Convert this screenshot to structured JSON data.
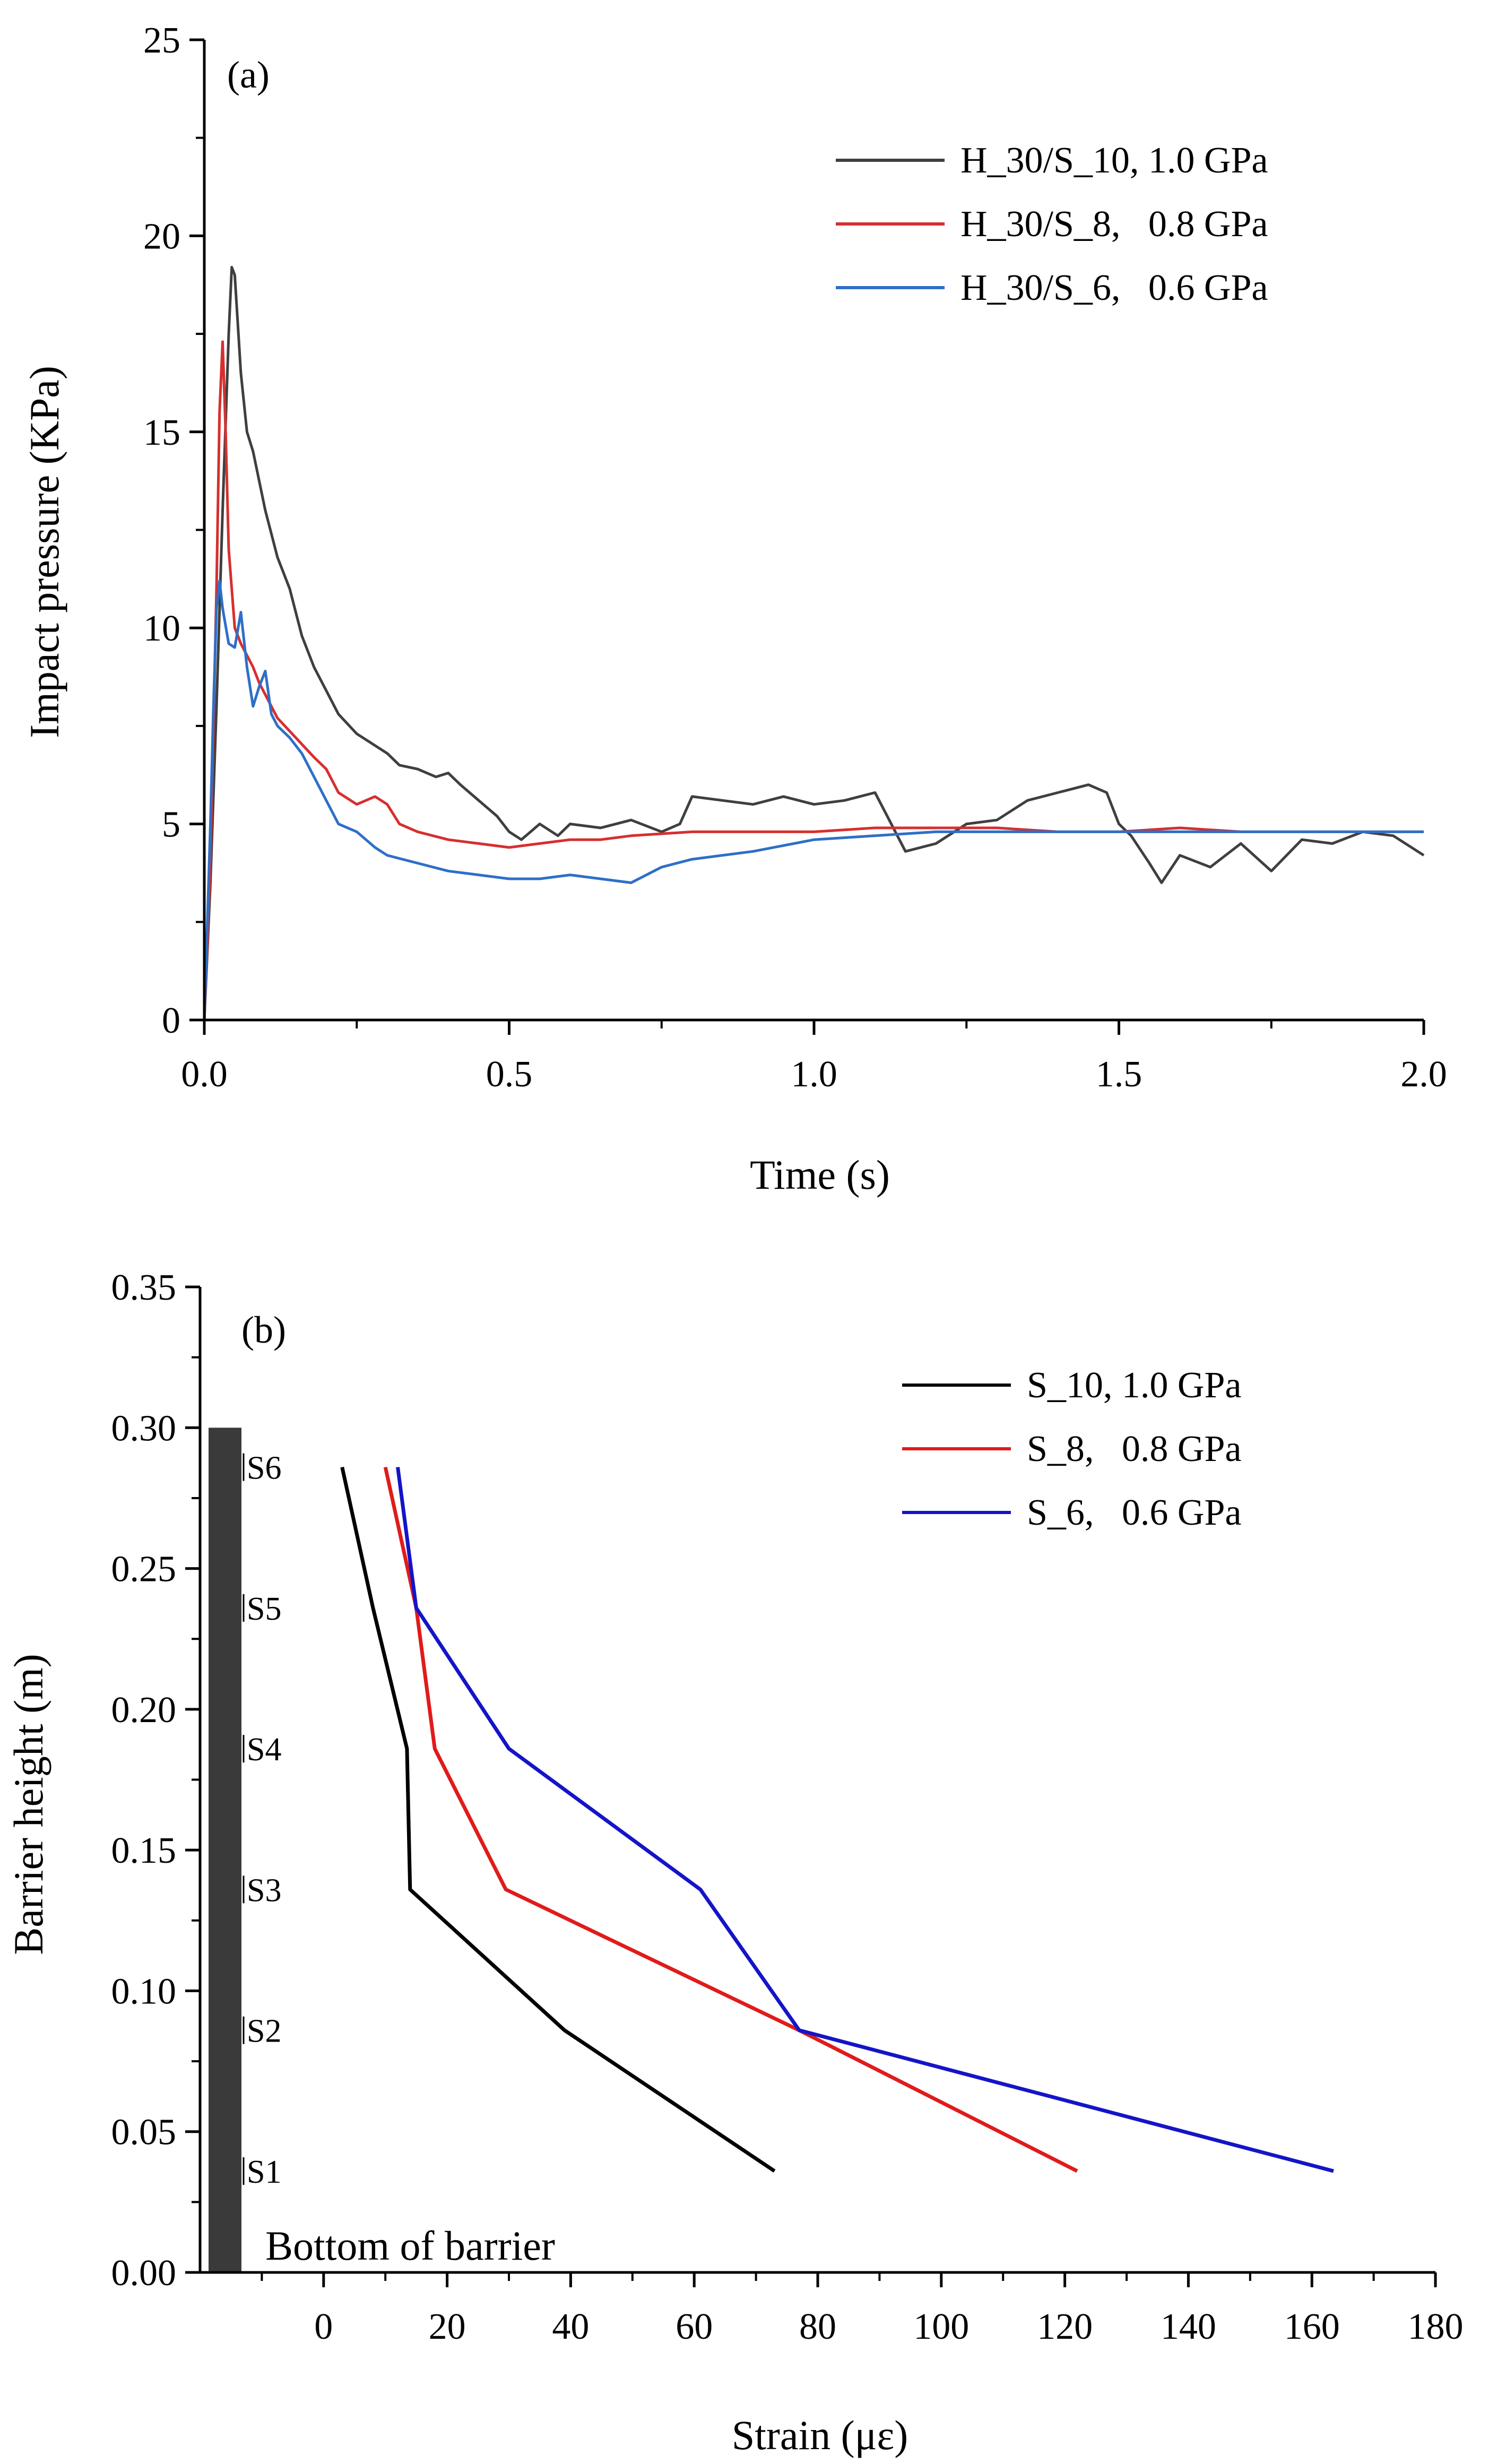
{
  "chart_data": [
    {
      "type": "line",
      "panel_label": "(a)",
      "xlabel": "Time (s)",
      "ylabel": "Impact pressure (KPa)",
      "xlim": [
        0,
        2.0
      ],
      "ylim": [
        0,
        25
      ],
      "xticks": [
        {
          "v": 0.0,
          "label": "0.0"
        },
        {
          "v": 0.5,
          "label": "0.5"
        },
        {
          "v": 1.0,
          "label": "1.0"
        },
        {
          "v": 1.5,
          "label": "1.5"
        },
        {
          "v": 2.0,
          "label": "2.0"
        }
      ],
      "yticks": [
        {
          "v": 0,
          "label": "0"
        },
        {
          "v": 5,
          "label": "5"
        },
        {
          "v": 10,
          "label": "10"
        },
        {
          "v": 15,
          "label": "15"
        },
        {
          "v": 20,
          "label": "20"
        },
        {
          "v": 25,
          "label": "25"
        }
      ],
      "legend_position": "top-right",
      "series": [
        {
          "name": "H_30/S_10, 1.0 GPa",
          "color": "#3f3f3f",
          "x": [
            0,
            0.01,
            0.02,
            0.03,
            0.04,
            0.045,
            0.05,
            0.06,
            0.07,
            0.08,
            0.1,
            0.12,
            0.14,
            0.16,
            0.18,
            0.2,
            0.22,
            0.25,
            0.28,
            0.3,
            0.32,
            0.35,
            0.38,
            0.4,
            0.42,
            0.45,
            0.48,
            0.5,
            0.52,
            0.55,
            0.58,
            0.6,
            0.65,
            0.7,
            0.75,
            0.78,
            0.8,
            0.85,
            0.9,
            0.95,
            1.0,
            1.05,
            1.1,
            1.12,
            1.15,
            1.2,
            1.25,
            1.3,
            1.35,
            1.4,
            1.45,
            1.48,
            1.5,
            1.52,
            1.55,
            1.57,
            1.6,
            1.65,
            1.7,
            1.75,
            1.8,
            1.85,
            1.9,
            1.95,
            2.0
          ],
          "y": [
            0,
            3.5,
            8.0,
            13.0,
            17.5,
            19.2,
            19.0,
            16.5,
            15.0,
            14.5,
            13.0,
            11.8,
            11.0,
            9.8,
            9.0,
            8.4,
            7.8,
            7.3,
            7.0,
            6.8,
            6.5,
            6.4,
            6.2,
            6.3,
            6.0,
            5.6,
            5.2,
            4.8,
            4.6,
            5.0,
            4.7,
            5.0,
            4.9,
            5.1,
            4.8,
            5.0,
            5.7,
            5.6,
            5.5,
            5.7,
            5.5,
            5.6,
            5.8,
            5.2,
            4.3,
            4.5,
            5.0,
            5.1,
            5.6,
            5.8,
            6.0,
            5.8,
            5.0,
            4.7,
            4.0,
            3.5,
            4.2,
            3.9,
            4.5,
            3.8,
            4.6,
            4.5,
            4.8,
            4.7,
            4.2
          ]
        },
        {
          "name": "H_30/S_8,   0.8 GPa",
          "color": "#d62f2f",
          "x": [
            0,
            0.01,
            0.02,
            0.025,
            0.03,
            0.035,
            0.04,
            0.05,
            0.06,
            0.07,
            0.08,
            0.09,
            0.1,
            0.12,
            0.15,
            0.18,
            0.2,
            0.22,
            0.25,
            0.28,
            0.3,
            0.32,
            0.35,
            0.4,
            0.45,
            0.5,
            0.55,
            0.6,
            0.65,
            0.7,
            0.8,
            0.9,
            1.0,
            1.1,
            1.2,
            1.3,
            1.4,
            1.5,
            1.6,
            1.7,
            1.8,
            1.9,
            2.0
          ],
          "y": [
            0,
            4.0,
            11.0,
            15.5,
            17.3,
            15.0,
            12.0,
            10.0,
            9.6,
            9.3,
            9.0,
            8.6,
            8.3,
            7.7,
            7.2,
            6.7,
            6.4,
            5.8,
            5.5,
            5.7,
            5.5,
            5.0,
            4.8,
            4.6,
            4.5,
            4.4,
            4.5,
            4.6,
            4.6,
            4.7,
            4.8,
            4.8,
            4.8,
            4.9,
            4.9,
            4.9,
            4.8,
            4.8,
            4.9,
            4.8,
            4.8,
            4.8,
            4.8
          ]
        },
        {
          "name": "H_30/S_6,   0.6 GPa",
          "color": "#2e6fc7",
          "x": [
            0,
            0.01,
            0.015,
            0.02,
            0.025,
            0.03,
            0.04,
            0.05,
            0.06,
            0.07,
            0.08,
            0.09,
            0.1,
            0.11,
            0.12,
            0.14,
            0.16,
            0.18,
            0.2,
            0.22,
            0.25,
            0.28,
            0.3,
            0.35,
            0.4,
            0.45,
            0.5,
            0.55,
            0.6,
            0.65,
            0.7,
            0.75,
            0.8,
            0.9,
            1.0,
            1.1,
            1.2,
            1.3,
            1.4,
            1.5,
            1.6,
            1.7,
            1.8,
            1.9,
            2.0
          ],
          "y": [
            0,
            5.0,
            8.0,
            10.5,
            11.2,
            10.5,
            9.6,
            9.5,
            10.4,
            9.0,
            8.0,
            8.5,
            8.9,
            7.8,
            7.5,
            7.2,
            6.8,
            6.2,
            5.6,
            5.0,
            4.8,
            4.4,
            4.2,
            4.0,
            3.8,
            3.7,
            3.6,
            3.6,
            3.7,
            3.6,
            3.5,
            3.9,
            4.1,
            4.3,
            4.6,
            4.7,
            4.8,
            4.8,
            4.8,
            4.8,
            4.8,
            4.8,
            4.8,
            4.8,
            4.8
          ]
        }
      ]
    },
    {
      "type": "line",
      "panel_label": "(b)",
      "xlabel": "Strain (με)",
      "ylabel": "Barrier height (m)",
      "xlim": [
        -20,
        180
      ],
      "ylim": [
        0,
        0.35
      ],
      "xticks": [
        {
          "v": 0,
          "label": "0"
        },
        {
          "v": 20,
          "label": "20"
        },
        {
          "v": 40,
          "label": "40"
        },
        {
          "v": 60,
          "label": "60"
        },
        {
          "v": 80,
          "label": "80"
        },
        {
          "v": 100,
          "label": "100"
        },
        {
          "v": 120,
          "label": "120"
        },
        {
          "v": 140,
          "label": "140"
        },
        {
          "v": 160,
          "label": "160"
        },
        {
          "v": 180,
          "label": "180"
        }
      ],
      "yticks": [
        {
          "v": 0.0,
          "label": "0.00"
        },
        {
          "v": 0.05,
          "label": "0.05"
        },
        {
          "v": 0.1,
          "label": "0.10"
        },
        {
          "v": 0.15,
          "label": "0.15"
        },
        {
          "v": 0.2,
          "label": "0.20"
        },
        {
          "v": 0.25,
          "label": "0.25"
        },
        {
          "v": 0.3,
          "label": "0.30"
        },
        {
          "v": 0.35,
          "label": "0.35"
        }
      ],
      "legend_position": "top-right",
      "barrier": {
        "top": 0.3,
        "color": "#3a3a3a",
        "bottom_label": "Bottom of barrier"
      },
      "sensors": [
        {
          "label": "S1",
          "height": 0.036
        },
        {
          "label": "S2",
          "height": 0.086
        },
        {
          "label": "S3",
          "height": 0.136
        },
        {
          "label": "S4",
          "height": 0.186
        },
        {
          "label": "S5",
          "height": 0.236
        },
        {
          "label": "S6",
          "height": 0.286
        }
      ],
      "series": [
        {
          "name": "S_10, 1.0 GPa",
          "color": "#000000",
          "x": [
            73,
            39,
            14,
            13.5,
            13.5,
            8,
            3
          ],
          "y": [
            0.036,
            0.086,
            0.136,
            0.186,
            0.186,
            0.236,
            0.286
          ]
        },
        {
          "name": "S_8,   0.8 GPa",
          "color": "#e01b1b",
          "x": [
            122,
            77,
            29.5,
            18,
            15,
            10
          ],
          "y": [
            0.036,
            0.086,
            0.136,
            0.186,
            0.236,
            0.286
          ]
        },
        {
          "name": "S_6,   0.6 GPa",
          "color": "#1414c8",
          "x": [
            163.5,
            77,
            61,
            30,
            15,
            12
          ],
          "y": [
            0.036,
            0.086,
            0.136,
            0.186,
            0.236,
            0.286
          ]
        }
      ]
    }
  ]
}
